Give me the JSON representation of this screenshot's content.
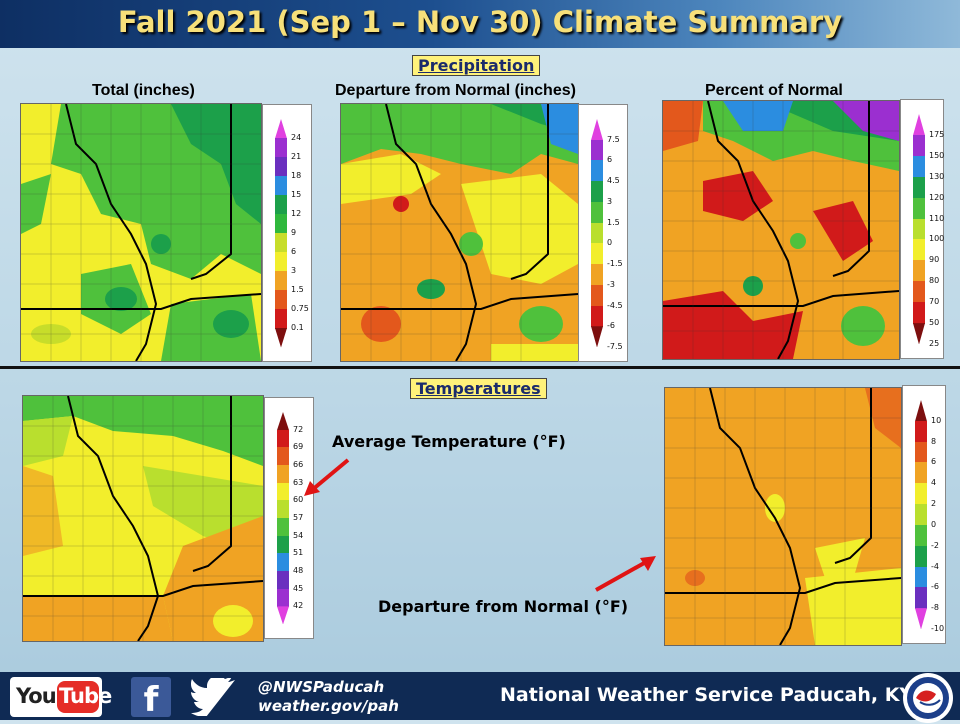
{
  "title": "Fall 2021 (Sep 1 – Nov 30) Climate Summary",
  "precip": {
    "section": "Precipitation",
    "maps": [
      {
        "title": "Total (inches)",
        "ticks": [
          "24",
          "21",
          "18",
          "15",
          "12",
          "9",
          "6",
          "3",
          "1.5",
          "0.75",
          "0.1"
        ],
        "colors": [
          "#e040e0",
          "#9b2fd0",
          "#6a2fbf",
          "#2b8de0",
          "#1ca04a",
          "#2fb83c",
          "#c7dd2a",
          "#f2ee2c",
          "#f0a323",
          "#e3581c",
          "#d11a1a",
          "#7d0f0f"
        ]
      },
      {
        "title": "Departure from Normal (inches)",
        "ticks": [
          "7.5",
          "6",
          "4.5",
          "3",
          "1.5",
          "0",
          "-1.5",
          "-3",
          "-4.5",
          "-6",
          "-7.5"
        ],
        "colors": [
          "#e040e0",
          "#9b2fd0",
          "#2b8de0",
          "#1ca04a",
          "#4fc13c",
          "#b9df2e",
          "#f2ee2c",
          "#f0a323",
          "#e3581c",
          "#d11a1a",
          "#7d0f0f"
        ]
      },
      {
        "title": "Percent of Normal",
        "ticks": [
          "175",
          "150",
          "130",
          "120",
          "110",
          "100",
          "90",
          "80",
          "70",
          "50",
          "25"
        ],
        "colors": [
          "#e040e0",
          "#9b2fd0",
          "#2b8de0",
          "#1ca04a",
          "#4fc13c",
          "#b9df2e",
          "#f2ee2c",
          "#f0a323",
          "#e3581c",
          "#d11a1a",
          "#7d0f0f"
        ]
      }
    ]
  },
  "temps": {
    "section": "Temperatures",
    "avg_label": "Average Temperature (°F)",
    "dep_label": "Departure from Normal (°F)",
    "avg_ticks": [
      "72",
      "69",
      "66",
      "63",
      "60",
      "57",
      "54",
      "51",
      "48",
      "45",
      "42"
    ],
    "avg_colors": [
      "#7d0f0f",
      "#d11a1a",
      "#e3581c",
      "#f0a323",
      "#f2ee2c",
      "#b9df2e",
      "#4fc13c",
      "#1ca04a",
      "#2b8de0",
      "#6a2fbf",
      "#9b2fd0",
      "#e040e0"
    ],
    "dep_ticks": [
      "10",
      "8",
      "6",
      "4",
      "2",
      "0",
      "-2",
      "-4",
      "-6",
      "-8",
      "-10"
    ],
    "dep_colors": [
      "#7d0f0f",
      "#d11a1a",
      "#e3581c",
      "#f0a323",
      "#f2ee2c",
      "#b9df2e",
      "#4fc13c",
      "#1ca04a",
      "#2b8de0",
      "#6a2fbf",
      "#e040e0"
    ]
  },
  "footer": {
    "youtube_you": "You",
    "youtube_tube": "Tube",
    "facebook_glyph": "f",
    "handle": "@NWSPaducah",
    "website": "weather.gov/pah",
    "office": "National Weather Service Paducah, KY"
  },
  "icons": [
    "youtube-icon",
    "facebook-icon",
    "twitter-icon",
    "nws-logo-icon",
    "arrow-icon"
  ]
}
